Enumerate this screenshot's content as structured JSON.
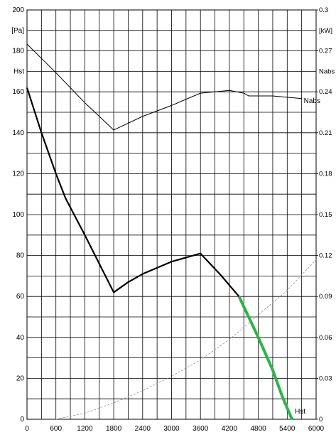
{
  "chart_data": {
    "type": "line",
    "y_unit": "[Pa]",
    "y_label": "Hst",
    "y2_unit": "[kW]",
    "y2_label": "Nabs",
    "xlim": [
      0,
      6000
    ],
    "xticks": [
      0,
      600,
      1200,
      1800,
      2400,
      3000,
      3600,
      4200,
      4800,
      5400,
      6000
    ],
    "ylim": [
      0,
      200
    ],
    "yticks": [
      0,
      20,
      40,
      60,
      80,
      100,
      120,
      140,
      160,
      180,
      200
    ],
    "y2lim": [
      0,
      0.3
    ],
    "y2ticks": [
      0,
      0.03,
      0.06,
      0.09,
      0.12,
      0.15,
      0.18,
      0.21,
      0.24,
      0.27,
      0.3
    ],
    "grid": true,
    "series": [
      {
        "name": "Hst",
        "color": "#000000",
        "x": [
          0,
          300,
          600,
          800,
          1200,
          1500,
          1800,
          2100,
          2400,
          2700,
          3000,
          3300,
          3600,
          4000,
          4400
        ],
        "values": [
          162,
          140,
          120,
          108,
          90,
          76,
          62,
          67,
          71,
          74,
          77,
          79,
          81,
          71,
          60
        ]
      },
      {
        "color": "#2db34a",
        "x": [
          4400,
          4800,
          5100,
          5300,
          5500
        ],
        "values": [
          60,
          40,
          24,
          11,
          0
        ]
      },
      {
        "name": "Nabs",
        "color": "#000000",
        "axis": "y2",
        "x": [
          0,
          600,
          1200,
          1800,
          2400,
          3000,
          3600,
          4200,
          4500,
          4600,
          5100,
          5700
        ],
        "values": [
          0.275,
          0.254,
          0.232,
          0.212,
          0.222,
          0.23,
          0.239,
          0.241,
          0.239,
          0.237,
          0.237,
          0.235
        ]
      },
      {
        "color": "#999999",
        "x": [
          600,
          1200,
          1800,
          2400,
          3000,
          3600,
          4200,
          4800,
          5400,
          6000
        ],
        "values": [
          0,
          3,
          8,
          14,
          21,
          29,
          39,
          51,
          63,
          78
        ]
      }
    ]
  }
}
